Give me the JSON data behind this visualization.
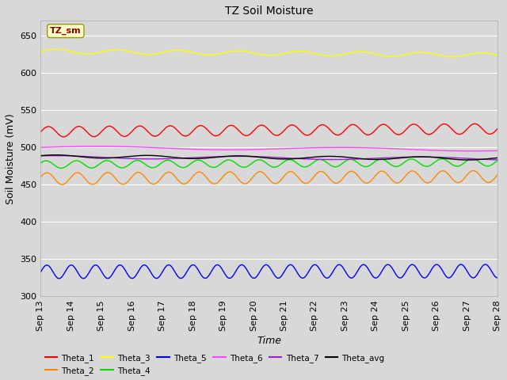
{
  "title": "TZ Soil Moisture",
  "xlabel": "Time",
  "ylabel": "Soil Moisture (mV)",
  "ylim": [
    300,
    670
  ],
  "yticks": [
    300,
    350,
    400,
    450,
    500,
    550,
    600,
    650
  ],
  "date_start": 13,
  "date_end": 28,
  "bg_color": "#d8d8d8",
  "plot_bg_color": "#d8d8d8",
  "label_box": "TZ_sm",
  "label_box_color": "#ffffcc",
  "label_box_text_color": "#880000",
  "series": {
    "Theta_1": {
      "color": "#ff0000",
      "base": 521,
      "amplitude": 7,
      "period": 1.0,
      "phase": 0.0,
      "trend": 4
    },
    "Theta_2": {
      "color": "#ff8800",
      "base": 458,
      "amplitude": 8,
      "period": 1.0,
      "phase": 0.3,
      "trend": 3
    },
    "Theta_3": {
      "color": "#ffff00",
      "base": 629,
      "amplitude": 3,
      "period": 2.0,
      "phase": 0.0,
      "trend": -5
    },
    "Theta_4": {
      "color": "#00dd00",
      "base": 477,
      "amplitude": 5,
      "period": 1.0,
      "phase": 0.5,
      "trend": 3
    },
    "Theta_5": {
      "color": "#0000ff",
      "base": 333,
      "amplitude": 9,
      "period": 0.8,
      "phase": 0.0,
      "trend": 1
    },
    "Theta_6": {
      "color": "#ff44ff",
      "base": 500,
      "amplitude": 2,
      "period": 8.0,
      "phase": 0.0,
      "trend": -3
    },
    "Theta_7": {
      "color": "#9922cc",
      "base": 487,
      "amplitude": 2,
      "period": 6.0,
      "phase": 1.0,
      "trend": -2
    },
    "Theta_avg": {
      "color": "#000000",
      "base": 488,
      "amplitude": 2,
      "period": 3.0,
      "phase": 0.5,
      "trend": -3
    }
  },
  "legend_row1": [
    "Theta_1",
    "Theta_2",
    "Theta_3",
    "Theta_4",
    "Theta_5",
    "Theta_6"
  ],
  "legend_row2": [
    "Theta_7",
    "Theta_avg"
  ]
}
